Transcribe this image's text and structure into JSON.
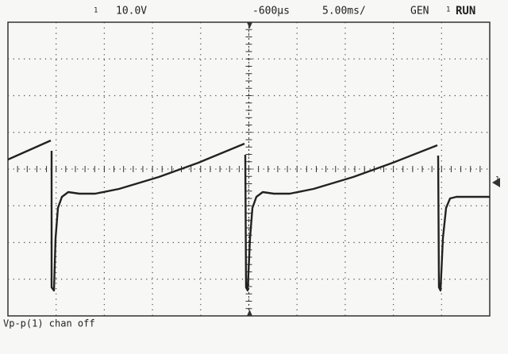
{
  "top_bar": {
    "channel": "1",
    "scale": "10.0V",
    "trigger_delay": "-600µs",
    "timebase": "5.00ms/",
    "mode": "GEN",
    "trigger_channel": "1",
    "status": "RUN"
  },
  "ground_marker": "1",
  "footer": {
    "measurement": "Vp-p(1) chan off"
  }
}
